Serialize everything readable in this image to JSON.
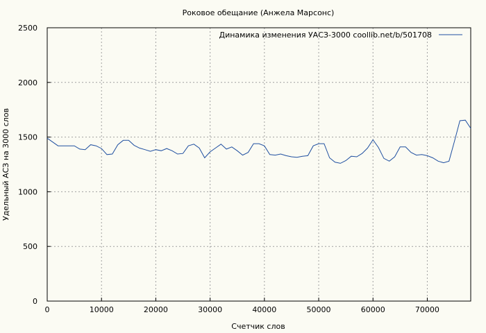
{
  "chart_data": {
    "type": "line",
    "title": "Роковое обещание (Анжела Марсонс)",
    "xlabel": "Счетчик слов",
    "ylabel": "Удельный АСЗ на 3000 слов",
    "xlim": [
      0,
      78000
    ],
    "ylim": [
      0,
      2500
    ],
    "xticks": [
      0,
      10000,
      20000,
      30000,
      40000,
      50000,
      60000,
      70000
    ],
    "xtick_labels": [
      "0",
      "10000",
      "20000",
      "30000",
      "40000",
      "50000",
      "60000",
      "70000"
    ],
    "yticks": [
      0,
      500,
      1000,
      1500,
      2000,
      2500
    ],
    "ytick_labels": [
      "0",
      "500",
      "1000",
      "1500",
      "2000",
      "2500"
    ],
    "grid": true,
    "legend_position": "top-right",
    "series": [
      {
        "name": "Динамика изменения УАСЗ-3000  coollib.net/b/501708",
        "color": "#1f4fa0",
        "x": [
          0,
          1000,
          2000,
          3000,
          4000,
          5000,
          6000,
          7000,
          8000,
          9000,
          10000,
          11000,
          12000,
          13000,
          14000,
          15000,
          16000,
          17000,
          18000,
          19000,
          20000,
          21000,
          22000,
          23000,
          24000,
          25000,
          26000,
          27000,
          28000,
          29000,
          30000,
          31000,
          32000,
          33000,
          34000,
          35000,
          36000,
          37000,
          38000,
          39000,
          40000,
          41000,
          42000,
          43000,
          44000,
          45000,
          46000,
          47000,
          48000,
          49000,
          50000,
          51000,
          52000,
          53000,
          54000,
          55000,
          56000,
          57000,
          58000,
          59000,
          60000,
          61000,
          62000,
          63000,
          64000,
          65000,
          66000,
          67000,
          68000,
          69000,
          70000,
          71000,
          72000,
          73000,
          74000,
          75000,
          76000,
          77000,
          78000
        ],
        "y": [
          1490,
          1455,
          1420,
          1420,
          1420,
          1420,
          1390,
          1385,
          1430,
          1420,
          1395,
          1340,
          1345,
          1430,
          1470,
          1470,
          1425,
          1400,
          1385,
          1370,
          1385,
          1375,
          1395,
          1375,
          1345,
          1350,
          1420,
          1435,
          1400,
          1310,
          1365,
          1400,
          1435,
          1390,
          1410,
          1375,
          1335,
          1360,
          1440,
          1440,
          1420,
          1340,
          1335,
          1345,
          1330,
          1320,
          1315,
          1325,
          1330,
          1420,
          1440,
          1440,
          1310,
          1270,
          1260,
          1285,
          1325,
          1320,
          1350,
          1400,
          1475,
          1405,
          1305,
          1280,
          1320,
          1410,
          1410,
          1360,
          1335,
          1340,
          1330,
          1310,
          1280,
          1265,
          1280,
          1460,
          1650,
          1655,
          1580
        ]
      }
    ]
  }
}
